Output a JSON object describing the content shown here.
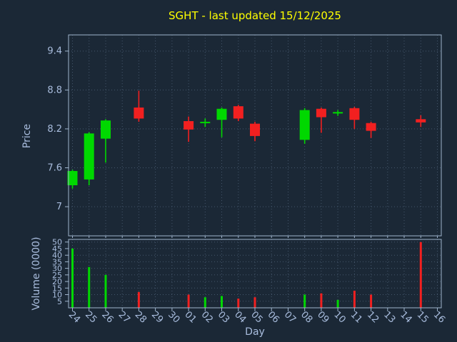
{
  "window": {
    "title": "SGHT - last updated 15/12/2025"
  },
  "colors": {
    "background": "#1b2836",
    "up": "#00d800",
    "down": "#f22020",
    "title": "#ffff00",
    "axis": "#9fb4cc",
    "tick_labels": "#a9bdde",
    "grid": "#44566b"
  },
  "chart_data": {
    "type": "candlestick",
    "title": "SGHT - last updated 15/12/2025",
    "xlabel": "Day",
    "legend": "none",
    "grid": "dotted",
    "price_axis": {
      "label": "Price",
      "ticks": [
        9.4,
        8.8,
        8.2,
        7.6,
        7
      ],
      "range": [
        6.55,
        9.65
      ]
    },
    "volume_axis": {
      "label": "Volume (0000)",
      "ticks": [
        50,
        45,
        40,
        35,
        30,
        25,
        20,
        15,
        10,
        5
      ],
      "range": [
        0,
        52
      ]
    },
    "days": [
      "24",
      "25",
      "26",
      "27",
      "28",
      "29",
      "30",
      "01",
      "02",
      "03",
      "04",
      "05",
      "06",
      "07",
      "08",
      "09",
      "10",
      "11",
      "12",
      "13",
      "14",
      "15",
      "16"
    ],
    "candles": [
      {
        "day": "24",
        "open": 7.33,
        "high": 7.57,
        "low": 7.28,
        "close": 7.55,
        "volume": 45
      },
      {
        "day": "25",
        "open": 7.42,
        "high": 8.15,
        "low": 7.33,
        "close": 8.13,
        "volume": 31
      },
      {
        "day": "26",
        "open": 8.05,
        "high": 8.35,
        "low": 7.68,
        "close": 8.33,
        "volume": 25
      },
      {
        "day": "27",
        "open": null,
        "high": null,
        "low": null,
        "close": null,
        "volume": 0
      },
      {
        "day": "28",
        "open": 8.53,
        "high": 8.79,
        "low": 8.31,
        "close": 8.36,
        "volume": 12
      },
      {
        "day": "29",
        "open": null,
        "high": null,
        "low": null,
        "close": null,
        "volume": 0
      },
      {
        "day": "30",
        "open": null,
        "high": null,
        "low": null,
        "close": null,
        "volume": 0
      },
      {
        "day": "01",
        "open": 8.32,
        "high": 8.39,
        "low": 8.0,
        "close": 8.19,
        "volume": 10
      },
      {
        "day": "02",
        "open": 8.29,
        "high": 8.36,
        "low": 8.23,
        "close": 8.31,
        "volume": 8
      },
      {
        "day": "03",
        "open": 8.34,
        "high": 8.53,
        "low": 8.07,
        "close": 8.51,
        "volume": 9
      },
      {
        "day": "04",
        "open": 8.55,
        "high": 8.57,
        "low": 8.32,
        "close": 8.36,
        "volume": 7
      },
      {
        "day": "05",
        "open": 8.28,
        "high": 8.31,
        "low": 8.01,
        "close": 8.09,
        "volume": 8
      },
      {
        "day": "06",
        "open": null,
        "high": null,
        "low": null,
        "close": null,
        "volume": 0
      },
      {
        "day": "07",
        "open": null,
        "high": null,
        "low": null,
        "close": null,
        "volume": 0
      },
      {
        "day": "08",
        "open": 8.03,
        "high": 8.52,
        "low": 7.97,
        "close": 8.49,
        "volume": 10
      },
      {
        "day": "09",
        "open": 8.51,
        "high": 8.53,
        "low": 8.14,
        "close": 8.38,
        "volume": 11
      },
      {
        "day": "10",
        "open": 8.44,
        "high": 8.49,
        "low": 8.4,
        "close": 8.46,
        "volume": 6
      },
      {
        "day": "11",
        "open": 8.52,
        "high": 8.54,
        "low": 8.2,
        "close": 8.34,
        "volume": 13
      },
      {
        "day": "12",
        "open": 8.29,
        "high": 8.31,
        "low": 8.06,
        "close": 8.17,
        "volume": 10
      },
      {
        "day": "13",
        "open": null,
        "high": null,
        "low": null,
        "close": null,
        "volume": 0
      },
      {
        "day": "14",
        "open": null,
        "high": null,
        "low": null,
        "close": null,
        "volume": 0
      },
      {
        "day": "15",
        "open": 8.35,
        "high": 8.41,
        "low": 8.23,
        "close": 8.3,
        "volume": 50
      },
      {
        "day": "16",
        "open": null,
        "high": null,
        "low": null,
        "close": null,
        "volume": 0
      }
    ]
  }
}
